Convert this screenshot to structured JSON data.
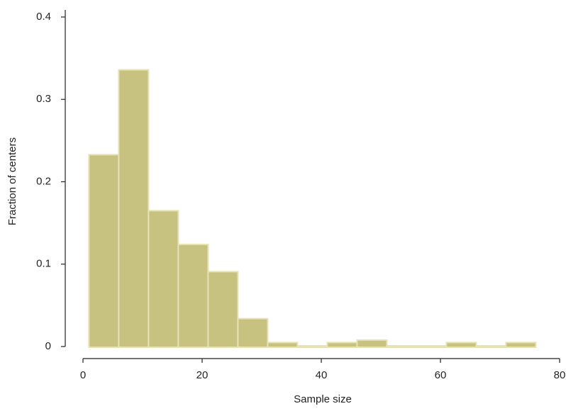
{
  "chart_data": {
    "type": "histogram",
    "xlabel": "Sample size",
    "ylabel": "Fraction of centers",
    "bins": [
      1,
      6,
      11,
      16,
      21,
      26,
      31,
      36,
      41,
      46,
      51,
      56,
      61,
      66,
      71,
      76
    ],
    "values": [
      0.232,
      0.335,
      0.164,
      0.123,
      0.09,
      0.033,
      0.004,
      0,
      0.004,
      0.007,
      0,
      0,
      0.004,
      0,
      0.004
    ],
    "color": "#c8c281",
    "edgecolor": "#e6e2b4",
    "xlim": [
      0,
      80
    ],
    "xticks": [
      0,
      20,
      40,
      60,
      80
    ],
    "ylim": [
      0,
      0.4
    ],
    "yticks": [
      0,
      0.1,
      0.2,
      0.3,
      0.4
    ]
  }
}
